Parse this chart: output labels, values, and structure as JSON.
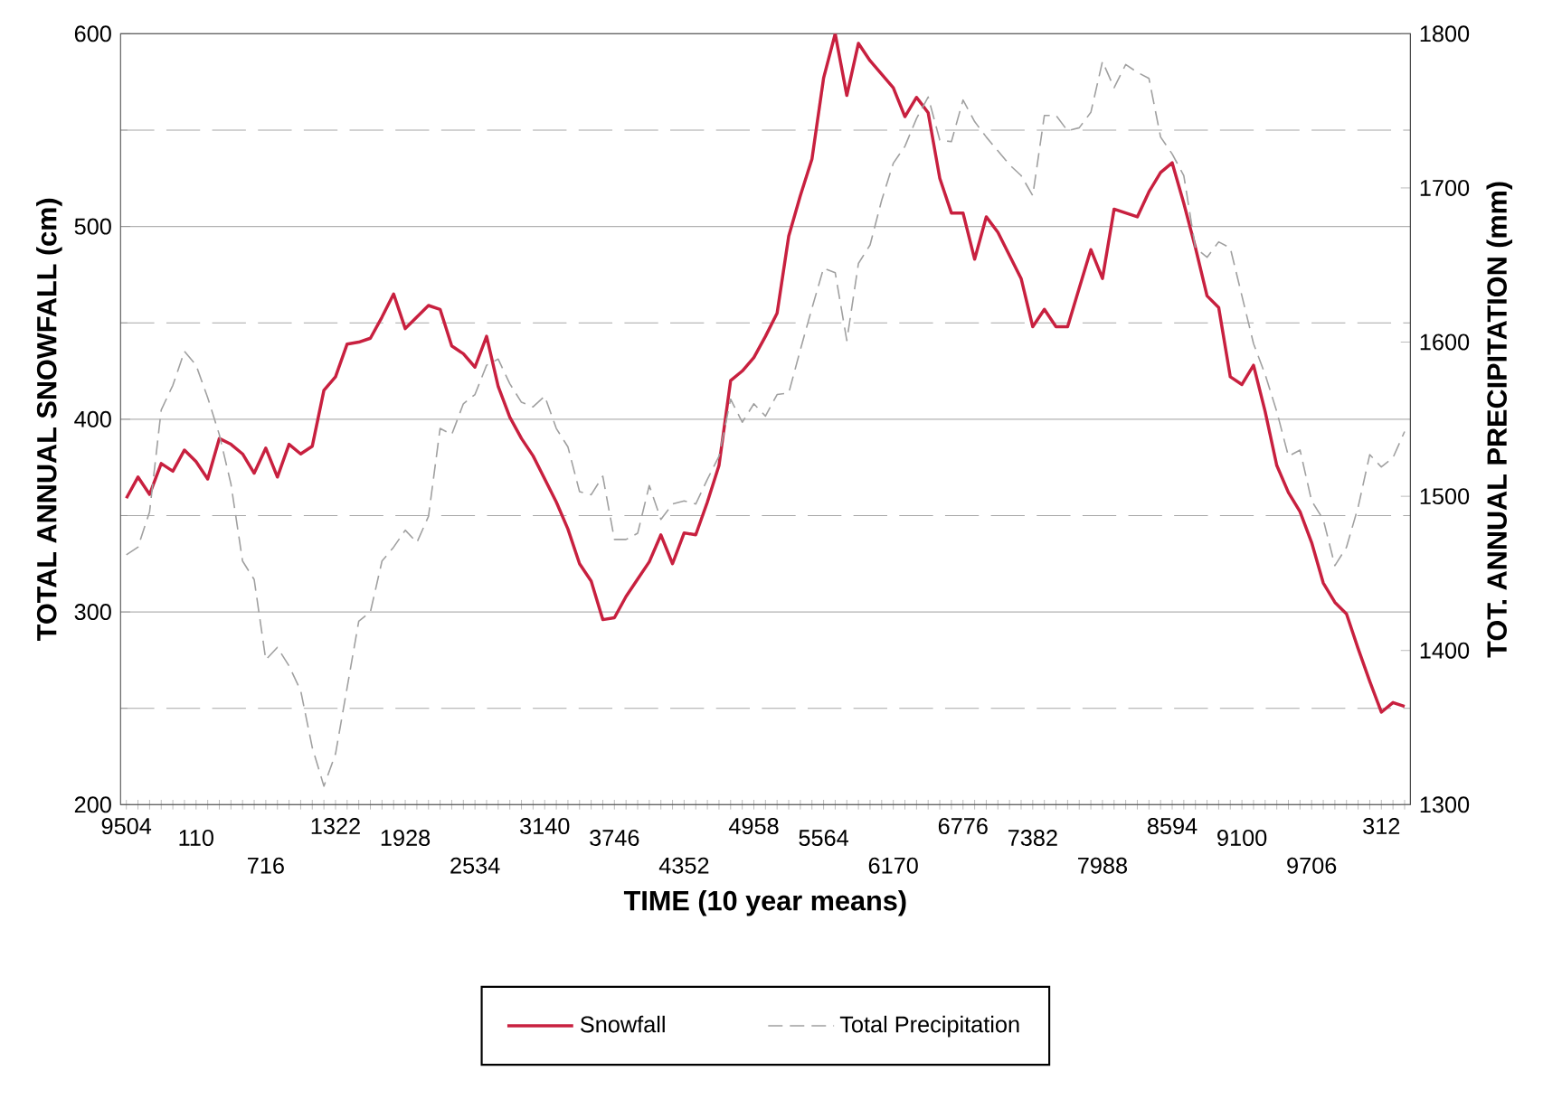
{
  "chart_data": {
    "type": "line",
    "xlabel": "TIME (10 year means)",
    "ylabel": "TOTAL ANNUAL SNOWFALL (cm)",
    "y2label": "TOT. ANNUAL PRECIPITATION (mm)",
    "categories": [
      "9504",
      null,
      null,
      null,
      null,
      null,
      "110",
      null,
      null,
      null,
      null,
      null,
      "716",
      null,
      null,
      null,
      null,
      null,
      "1322",
      null,
      null,
      null,
      null,
      null,
      "1928",
      null,
      null,
      null,
      null,
      null,
      "2534",
      null,
      null,
      null,
      null,
      null,
      "3140",
      null,
      null,
      null,
      null,
      null,
      "3746",
      null,
      null,
      null,
      null,
      null,
      "4352",
      null,
      null,
      null,
      null,
      null,
      "4958",
      null,
      null,
      null,
      null,
      null,
      "5564",
      null,
      null,
      null,
      null,
      null,
      "6170",
      null,
      null,
      null,
      null,
      null,
      "6776",
      null,
      null,
      null,
      null,
      null,
      "7382",
      null,
      null,
      null,
      null,
      null,
      "7988",
      null,
      null,
      null,
      null,
      null,
      "8594",
      null,
      null,
      null,
      null,
      null,
      "9100",
      null,
      null,
      null,
      null,
      null,
      "9706",
      null,
      null,
      null,
      null,
      null,
      "312",
      null,
      null
    ],
    "series": [
      {
        "name": "Snowfall",
        "color": "#c8203f",
        "line_style": "solid",
        "values": [
          359,
          370,
          361,
          377,
          373,
          384,
          378,
          369,
          390,
          387,
          382,
          372,
          385,
          370,
          387,
          382,
          386,
          415,
          422,
          439,
          440,
          442,
          453,
          465,
          447,
          453,
          459,
          457,
          438,
          434,
          427,
          443,
          417,
          401,
          390,
          381,
          369,
          357,
          343,
          325,
          316,
          296,
          297,
          308,
          317,
          326,
          340,
          325,
          341,
          340,
          357,
          376,
          420,
          425,
          432,
          443,
          455,
          495,
          516,
          535,
          577,
          600,
          568,
          595,
          586,
          579,
          572,
          557,
          567,
          559,
          525,
          507,
          507,
          483,
          505,
          497,
          485,
          473,
          448,
          457,
          448,
          448,
          468,
          488,
          473,
          509,
          507,
          505,
          518,
          528,
          533,
          512,
          489,
          464,
          458,
          422,
          418,
          428,
          404,
          376,
          362,
          352,
          336,
          315,
          305,
          299,
          281,
          264,
          248,
          253,
          251
        ]
      },
      {
        "name": "Total Precipitation",
        "color": "#a0a0a0",
        "line_style": "dashed",
        "axis": "y2",
        "values": [
          1462,
          1467,
          1490,
          1556,
          1572,
          1594,
          1585,
          1564,
          1540,
          1508,
          1458,
          1446,
          1394,
          1402,
          1390,
          1374,
          1337,
          1312,
          1333,
          1376,
          1419,
          1425,
          1458,
          1467,
          1478,
          1470,
          1487,
          1544,
          1540,
          1560,
          1566,
          1585,
          1589,
          1573,
          1561,
          1558,
          1565,
          1544,
          1532,
          1503,
          1501,
          1513,
          1472,
          1472,
          1476,
          1507,
          1485,
          1495,
          1497,
          1495,
          1511,
          1526,
          1563,
          1548,
          1560,
          1552,
          1566,
          1567,
          1595,
          1622,
          1648,
          1645,
          1601,
          1651,
          1663,
          1692,
          1716,
          1727,
          1745,
          1759,
          1731,
          1730,
          1757,
          1743,
          1733,
          1724,
          1715,
          1708,
          1695,
          1747,
          1747,
          1737,
          1739,
          1749,
          1782,
          1765,
          1780,
          1775,
          1771,
          1733,
          1722,
          1708,
          1661,
          1655,
          1665,
          1661,
          1630,
          1599,
          1579,
          1555,
          1526,
          1530,
          1497,
          1485,
          1455,
          1467,
          1493,
          1527,
          1519,
          1525,
          1542
        ]
      }
    ],
    "ylim": [
      200,
      600
    ],
    "yticks": [
      200,
      300,
      400,
      500,
      600
    ],
    "y2lim": [
      1300,
      1800
    ],
    "y2ticks": [
      1300,
      1400,
      1500,
      1600,
      1700,
      1800
    ],
    "grid": "y",
    "legend": "bottom",
    "marker": "none"
  }
}
